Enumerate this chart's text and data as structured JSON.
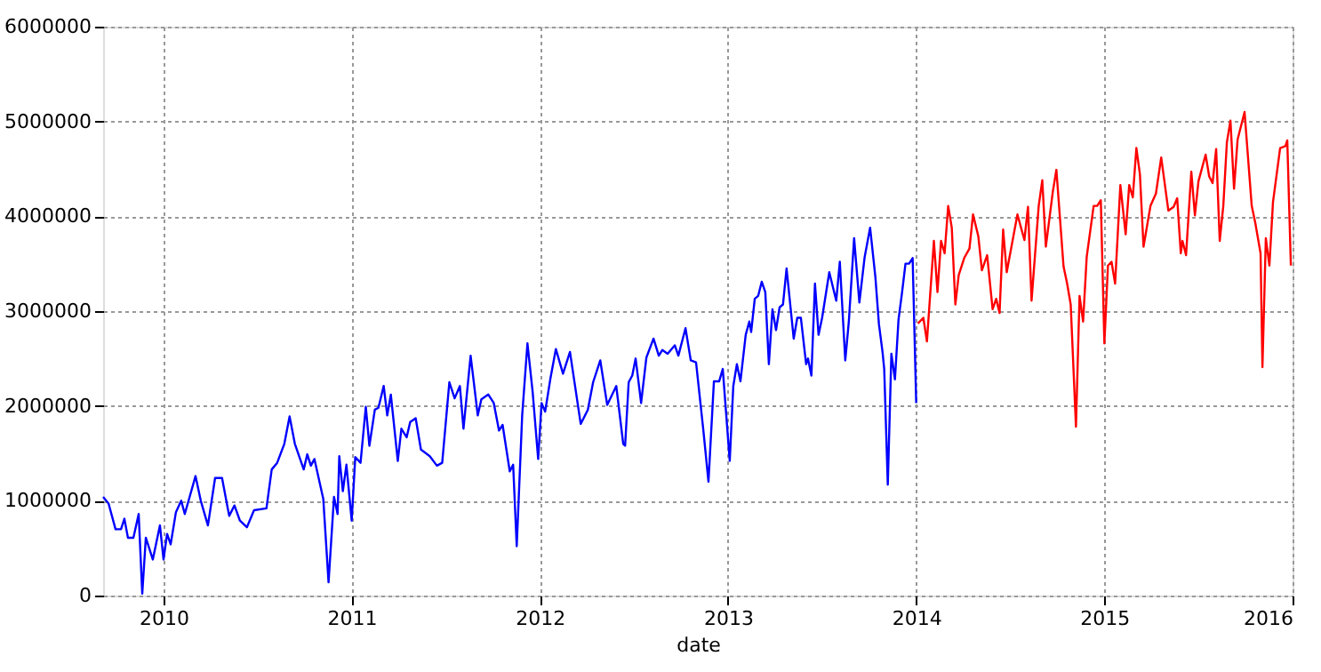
{
  "chart_data": {
    "type": "line",
    "xlabel": "date",
    "xlim": [
      2009.679,
      2016
    ],
    "xticks": [
      2010,
      2011,
      2012,
      2013,
      2014,
      2015,
      2016
    ],
    "ylim": [
      0,
      6000000
    ],
    "yticks": [
      0,
      1000000,
      2000000,
      3000000,
      4000000,
      5000000,
      6000000
    ],
    "grid": true,
    "marker": "none",
    "line_style": "solid",
    "series": [
      {
        "color": "#0000ff",
        "x": [
          2009.679,
          2009.708,
          2009.745,
          2009.774,
          2009.792,
          2009.811,
          2009.84,
          2009.868,
          2009.887,
          2009.906,
          2009.943,
          2009.981,
          2010.0,
          2010.019,
          2010.038,
          2010.066,
          2010.094,
          2010.113,
          2010.17,
          2010.198,
          2010.236,
          2010.274,
          2010.311,
          2010.349,
          2010.377,
          2010.406,
          2010.443,
          2010.481,
          2010.547,
          2010.575,
          2010.604,
          2010.642,
          2010.67,
          2010.698,
          2010.745,
          2010.764,
          2010.783,
          2010.802,
          2010.849,
          2010.877,
          2010.906,
          2010.925,
          2010.934,
          2010.953,
          2010.972,
          2011.0,
          2011.019,
          2011.047,
          2011.075,
          2011.094,
          2011.123,
          2011.142,
          2011.17,
          2011.189,
          2011.208,
          2011.245,
          2011.264,
          2011.292,
          2011.311,
          2011.34,
          2011.368,
          2011.415,
          2011.453,
          2011.481,
          2011.519,
          2011.547,
          2011.575,
          2011.594,
          2011.632,
          2011.67,
          2011.689,
          2011.726,
          2011.755,
          2011.783,
          2011.802,
          2011.84,
          2011.858,
          2011.877,
          2011.906,
          2011.934,
          2011.962,
          2011.991,
          2012.009,
          2012.028,
          2012.057,
          2012.085,
          2012.123,
          2012.16,
          2012.217,
          2012.255,
          2012.283,
          2012.321,
          2012.358,
          2012.406,
          2012.443,
          2012.453,
          2012.472,
          2012.491,
          2012.509,
          2012.538,
          2012.566,
          2012.604,
          2012.632,
          2012.651,
          2012.679,
          2012.717,
          2012.736,
          2012.774,
          2012.802,
          2012.83,
          2012.868,
          2012.896,
          2012.925,
          2012.953,
          2012.972,
          2013.009,
          2013.028,
          2013.047,
          2013.066,
          2013.094,
          2013.113,
          2013.123,
          2013.142,
          2013.16,
          2013.179,
          2013.198,
          2013.217,
          2013.236,
          2013.255,
          2013.274,
          2013.292,
          2013.311,
          2013.349,
          2013.368,
          2013.387,
          2013.415,
          2013.425,
          2013.443,
          2013.462,
          2013.481,
          2013.5,
          2013.538,
          2013.575,
          2013.594,
          2013.623,
          2013.642,
          2013.67,
          2013.698,
          2013.726,
          2013.755,
          2013.783,
          2013.802,
          2013.821,
          2013.83,
          2013.849,
          2013.868,
          2013.887,
          2013.906,
          2013.925,
          2013.943,
          2013.962,
          2013.981,
          2014.0
        ],
        "values": [
          1040000,
          970000,
          700000,
          700000,
          810000,
          610000,
          610000,
          860000,
          20000,
          610000,
          380000,
          740000,
          380000,
          650000,
          540000,
          880000,
          1000000,
          860000,
          1260000,
          1000000,
          740000,
          1240000,
          1240000,
          840000,
          950000,
          790000,
          720000,
          900000,
          920000,
          1330000,
          1400000,
          1600000,
          1890000,
          1600000,
          1330000,
          1490000,
          1370000,
          1440000,
          1020000,
          140000,
          1040000,
          860000,
          1470000,
          1100000,
          1380000,
          790000,
          1460000,
          1400000,
          1990000,
          1580000,
          1960000,
          1980000,
          2210000,
          1900000,
          2120000,
          1420000,
          1760000,
          1670000,
          1830000,
          1870000,
          1540000,
          1470000,
          1370000,
          1400000,
          2250000,
          2080000,
          2210000,
          1760000,
          2530000,
          1900000,
          2070000,
          2120000,
          2030000,
          1740000,
          1800000,
          1310000,
          1380000,
          520000,
          1900000,
          2660000,
          2140000,
          1440000,
          2030000,
          1940000,
          2300000,
          2600000,
          2340000,
          2570000,
          1810000,
          1960000,
          2250000,
          2480000,
          2010000,
          2210000,
          1600000,
          1580000,
          2250000,
          2320000,
          2500000,
          2030000,
          2510000,
          2710000,
          2530000,
          2590000,
          2550000,
          2640000,
          2530000,
          2820000,
          2480000,
          2460000,
          1760000,
          1200000,
          2260000,
          2260000,
          2390000,
          1420000,
          2210000,
          2440000,
          2260000,
          2750000,
          2890000,
          2780000,
          3130000,
          3160000,
          3310000,
          3200000,
          2440000,
          3020000,
          2800000,
          3040000,
          3070000,
          3450000,
          2710000,
          2930000,
          2930000,
          2440000,
          2500000,
          2320000,
          3290000,
          2750000,
          2930000,
          3410000,
          3110000,
          3520000,
          2480000,
          2890000,
          3770000,
          3090000,
          3570000,
          3880000,
          3360000,
          2860000,
          2570000,
          2390000,
          1170000,
          2550000,
          2280000,
          2910000,
          3200000,
          3500000,
          3500000,
          3560000,
          2030000
        ]
      },
      {
        "color": "#ff0000",
        "x": [
          2014.009,
          2014.038,
          2014.057,
          2014.094,
          2014.113,
          2014.132,
          2014.151,
          2014.17,
          2014.189,
          2014.208,
          2014.226,
          2014.255,
          2014.283,
          2014.302,
          2014.33,
          2014.349,
          2014.377,
          2014.406,
          2014.425,
          2014.443,
          2014.462,
          2014.481,
          2014.538,
          2014.557,
          2014.575,
          2014.594,
          2014.613,
          2014.651,
          2014.67,
          2014.689,
          2014.726,
          2014.745,
          2014.783,
          2014.802,
          2014.821,
          2014.849,
          2014.868,
          2014.887,
          2014.906,
          2014.943,
          2014.962,
          2014.981,
          2015.0,
          2015.019,
          2015.038,
          2015.057,
          2015.085,
          2015.113,
          2015.132,
          2015.151,
          2015.17,
          2015.189,
          2015.208,
          2015.245,
          2015.274,
          2015.302,
          2015.34,
          2015.368,
          2015.387,
          2015.406,
          2015.415,
          2015.434,
          2015.462,
          2015.481,
          2015.5,
          2015.538,
          2015.557,
          2015.575,
          2015.594,
          2015.613,
          2015.632,
          2015.651,
          2015.67,
          2015.689,
          2015.708,
          2015.745,
          2015.783,
          2015.802,
          2015.83,
          2015.84,
          2015.858,
          2015.877,
          2015.896,
          2015.934,
          2015.962,
          2015.972,
          2015.991
        ],
        "values": [
          2870000,
          2930000,
          2680000,
          3740000,
          3200000,
          3740000,
          3610000,
          4110000,
          3880000,
          3070000,
          3380000,
          3560000,
          3660000,
          4020000,
          3790000,
          3430000,
          3590000,
          3020000,
          3130000,
          2980000,
          3860000,
          3410000,
          4020000,
          3880000,
          3750000,
          4100000,
          3110000,
          4110000,
          4380000,
          3680000,
          4260000,
          4490000,
          3470000,
          3290000,
          3070000,
          1780000,
          3160000,
          2890000,
          3570000,
          4110000,
          4110000,
          4170000,
          2660000,
          3480000,
          3520000,
          3290000,
          4330000,
          3810000,
          4330000,
          4200000,
          4720000,
          4440000,
          3680000,
          4110000,
          4240000,
          4620000,
          4060000,
          4100000,
          4190000,
          3610000,
          3740000,
          3590000,
          4470000,
          4010000,
          4370000,
          4650000,
          4420000,
          4350000,
          4710000,
          3740000,
          4110000,
          4780000,
          5010000,
          4290000,
          4810000,
          5100000,
          4110000,
          3930000,
          3610000,
          2410000,
          3770000,
          3480000,
          4150000,
          4720000,
          4740000,
          4800000,
          3480000
        ]
      }
    ]
  }
}
